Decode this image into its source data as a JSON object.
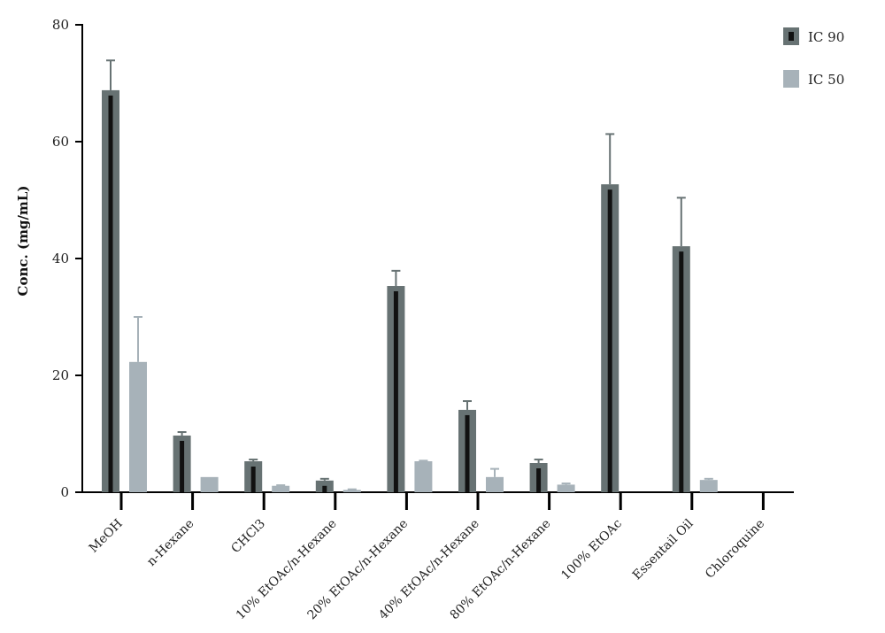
{
  "chart_data": {
    "type": "bar",
    "title": "",
    "xlabel": "",
    "ylabel": "Conc. (mg/mL)",
    "ylim": [
      0,
      80
    ],
    "yticks": [
      0,
      20,
      40,
      60,
      80
    ],
    "categories": [
      "MeOH",
      "n-Hexane",
      "CHCl3",
      "10% EtOAc/n-Hexane",
      "20% EtOAc/n-Hexane",
      "40% EtOAc/n-Hexane",
      "80% EtOAc/n-Hexane",
      "100% EtOAc",
      "Essentail Oil",
      "Chloroquine"
    ],
    "series": [
      {
        "name": "IC 90",
        "color": "#677273",
        "values": [
          68.8,
          9.7,
          5.3,
          2.0,
          35.3,
          14.1,
          5.0,
          52.7,
          42.1,
          0
        ],
        "errors": [
          5.1,
          0.6,
          0.3,
          0.3,
          2.6,
          1.5,
          0.6,
          8.6,
          8.3,
          0
        ]
      },
      {
        "name": "IC 50",
        "color": "#a7b2b9",
        "values": [
          22.3,
          2.6,
          1.1,
          0.4,
          5.3,
          2.6,
          1.3,
          0,
          2.1,
          0
        ],
        "errors": [
          7.7,
          0,
          0.1,
          0.1,
          0.1,
          1.4,
          0.2,
          0,
          0.2,
          0
        ]
      }
    ],
    "legend_position": "top-right",
    "grid": false
  }
}
